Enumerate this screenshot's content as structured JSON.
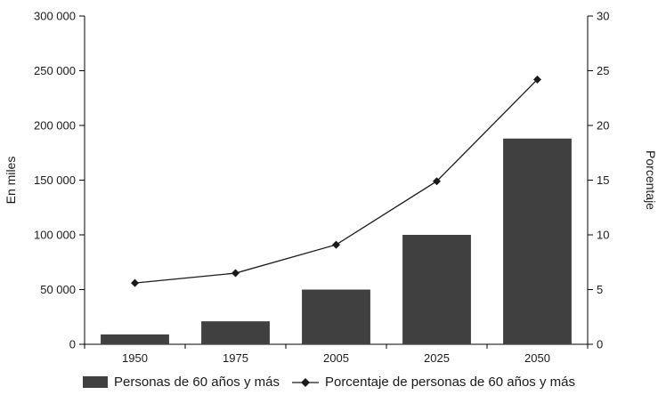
{
  "chart_data": {
    "type": "bar+line",
    "categories": [
      "1950",
      "1975",
      "2005",
      "2025",
      "2050"
    ],
    "series": [
      {
        "name": "Personas de 60 años y más",
        "type": "bar",
        "axis": "left",
        "values": [
          9000,
          21000,
          50000,
          100000,
          188000
        ]
      },
      {
        "name": "Porcentaje de personas de 60 años y más",
        "type": "line",
        "axis": "right",
        "values": [
          5.6,
          6.5,
          9.1,
          14.9,
          24.2
        ]
      }
    ],
    "left_axis": {
      "label": "En miles",
      "min": 0,
      "max": 300000,
      "step": 50000,
      "tick_labels": [
        "0",
        "50 000",
        "100 000",
        "150 000",
        "200 000",
        "250 000",
        "300 000"
      ]
    },
    "right_axis": {
      "label": "Porcentaje",
      "min": 0,
      "max": 30,
      "step": 5,
      "tick_labels": [
        "0",
        "5",
        "10",
        "15",
        "20",
        "25",
        "30"
      ]
    },
    "bar_color": "#404040",
    "line_color": "#1a1a1a",
    "grid": false,
    "legend_position": "bottom"
  },
  "legend": {
    "bar_label": "Personas de 60 años y más",
    "line_label": "Porcentaje de personas de 60 años y más"
  }
}
